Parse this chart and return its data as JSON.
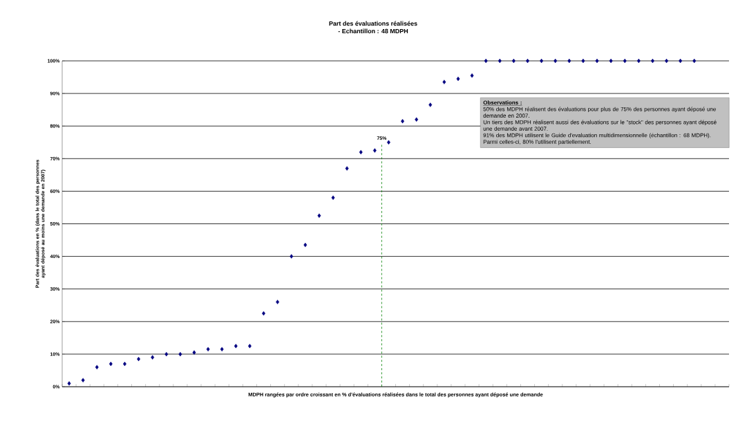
{
  "chart_data": {
    "type": "scatter",
    "title": "Part des évaluations réalisées",
    "subtitle": "- Echantillon : 48 MDPH",
    "xlabel": "MDPH rangées par ordre croissant en % d'évaluations réalisées dans le total des personnes ayant déposé une demande",
    "ylabel": "Part des évaluations en % (dans le total des personnes ayant déposé au moins une demande en 2007)",
    "categories": [
      null,
      null,
      null,
      null,
      null,
      null,
      null,
      null,
      null,
      null,
      null,
      null,
      null,
      null,
      null,
      null,
      null,
      null,
      null,
      null,
      null,
      null,
      null,
      null,
      null,
      null,
      null,
      null,
      null,
      null,
      null,
      null,
      null,
      null,
      null,
      null,
      null,
      null,
      null,
      null,
      null,
      null,
      null,
      null,
      null,
      null,
      null,
      null
    ],
    "values": [
      1,
      2,
      6,
      7,
      7,
      8.5,
      9,
      10,
      10,
      10.5,
      11.5,
      11.5,
      12.5,
      12.5,
      22.5,
      26,
      40,
      43.5,
      52.5,
      58,
      67,
      72,
      72.5,
      75,
      81.5,
      82,
      86.5,
      93.5,
      94.5,
      95.5,
      100,
      100,
      100,
      100,
      100,
      100,
      100,
      100,
      100,
      100,
      100,
      100,
      100,
      100,
      100,
      100,
      null,
      null
    ],
    "color": "#000080",
    "marker": "diamond",
    "grid": "y",
    "tick_labels": "y",
    "ylim": [
      0,
      100
    ],
    "yticks": [
      {
        "value": 0,
        "label": "0%"
      },
      {
        "value": 10,
        "label": "10%"
      },
      {
        "value": 20,
        "label": "20%"
      },
      {
        "value": 30,
        "label": "30%"
      },
      {
        "value": 40,
        "label": "40%"
      },
      {
        "value": 50,
        "label": "50%"
      },
      {
        "value": 60,
        "label": "60%"
      },
      {
        "value": 70,
        "label": "70%"
      },
      {
        "value": 80,
        "label": "80%"
      },
      {
        "value": 90,
        "label": "90%"
      },
      {
        "value": 100,
        "label": "100%"
      }
    ],
    "annotations": [
      "75%",
      "Observations :",
      "50% des MDPH réalisent des évaluations pour plus de 75% des personnes ayant déposé une demande en 2007.",
      "Un tiers des MDPH réalisent aussi des évaluations sur le \"stock\" des personnes ayant déposé une demande avant 2007.",
      "91% des MDPH utilisent le Guide d'evaluation multidimensionnelle (échantillon : 68 MDPH). Parmi celles-ci, 80% l'utilisent partiellement."
    ]
  }
}
